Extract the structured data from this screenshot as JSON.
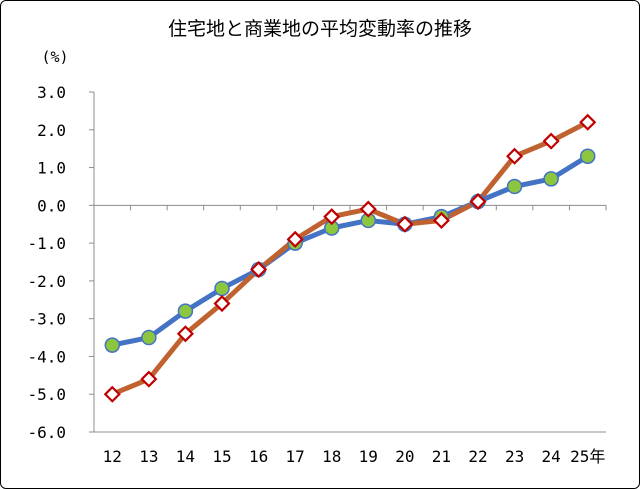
{
  "chart_data": {
    "type": "line",
    "title": "住宅地と商業地の平均変動率の推移",
    "y_unit": "(%)",
    "categories": [
      "12",
      "13",
      "14",
      "15",
      "16",
      "17",
      "18",
      "19",
      "20",
      "21",
      "22",
      "23",
      "24",
      "25年"
    ],
    "y_tick_labels": [
      "3.0",
      "2.0",
      "1.0",
      "0.0",
      "-1.0",
      "-2.0",
      "-3.0",
      "-4.0",
      "-5.0",
      "-6.0"
    ],
    "ylim": [
      -6,
      3
    ],
    "grid": false,
    "legend": "none",
    "series": [
      {
        "values": [
          -3.7,
          -3.5,
          -2.8,
          -2.2,
          -1.7,
          -1.0,
          -0.6,
          -0.4,
          -0.5,
          -0.3,
          0.1,
          0.5,
          0.7,
          1.3
        ],
        "line_color": "#4472c4",
        "marker": "circle",
        "marker_fill": "#8cc63f"
      },
      {
        "values": [
          -5.0,
          -4.6,
          -3.4,
          -2.6,
          -1.7,
          -0.9,
          -0.3,
          -0.1,
          -0.5,
          -0.4,
          0.1,
          1.3,
          1.7,
          2.2
        ],
        "line_color": "#c0622f",
        "marker": "diamond",
        "marker_fill": "#ffffff",
        "marker_stroke": "#c00000"
      }
    ]
  }
}
